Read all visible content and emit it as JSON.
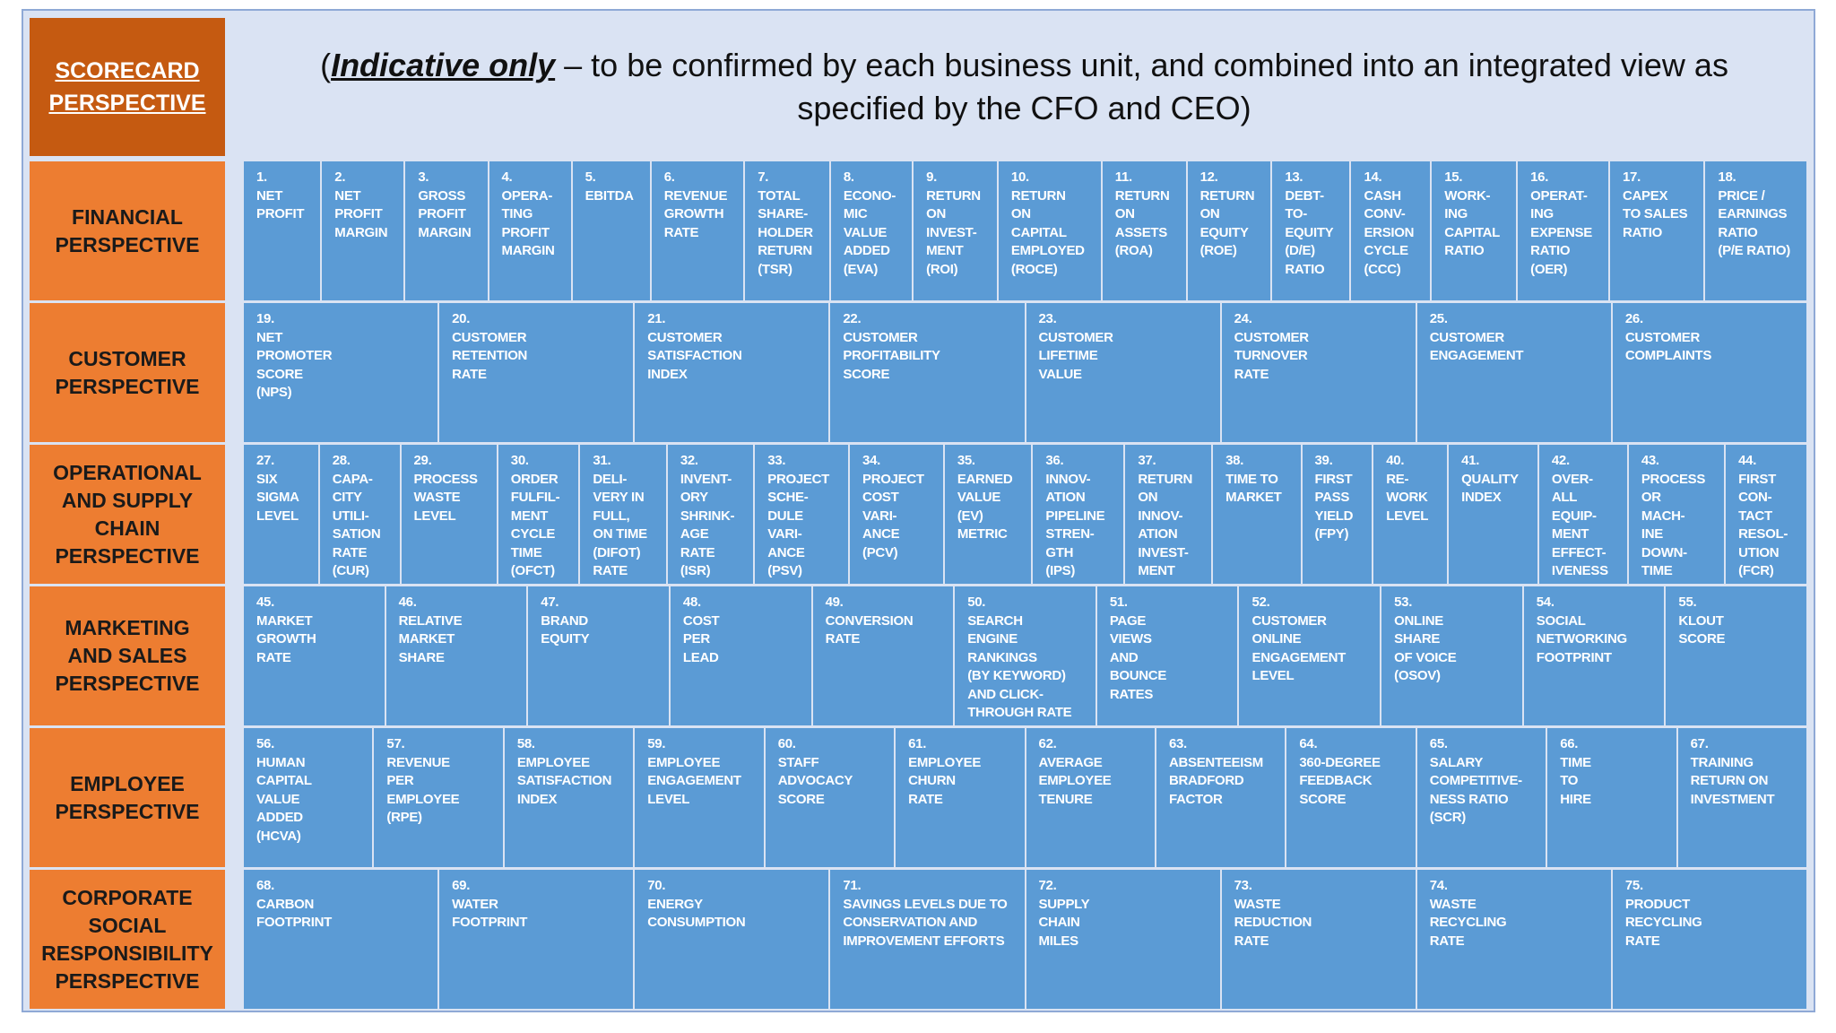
{
  "header": {
    "scorecard": "SCORECARD\nPERSPECTIVE",
    "prefix": "(",
    "emphasis": "Indicative only",
    "rest": " – to be confirmed by each business unit, and combined into an integrated view as specified by the CFO and CEO)"
  },
  "rows": [
    {
      "label": "FINANCIAL\nPERSPECTIVE",
      "cells": [
        "1.\nNET\nPROFIT",
        "2.\nNET\nPROFIT\nMARGIN",
        "3.\nGROSS\nPROFIT\nMARGIN",
        "4.\nOPERA-\nTING\nPROFIT\nMARGIN",
        "5.\nEBITDA",
        "6.\nREVENUE\nGROWTH\nRATE",
        "7.\nTOTAL\nSHARE-\nHOLDER\nRETURN\n(TSR)",
        "8.\nECONO-\nMIC\nVALUE\nADDED\n(EVA)",
        "9.\nRETURN\nON\nINVEST-\nMENT\n(ROI)",
        "10.\nRETURN\nON\nCAPITAL\nEMPLOYED\n(ROCE)",
        "11.\nRETURN\nON\nASSETS\n(ROA)",
        "12.\nRETURN\nON\nEQUITY\n(ROE)",
        "13.\nDEBT-\nTO-\nEQUITY\n(D/E)\nRATIO",
        "14.\nCASH\nCONV-\nERSION\nCYCLE\n(CCC)",
        "15.\nWORK-\nING\nCAPITAL\nRATIO",
        "16.\nOPERAT-\nING\nEXPENSE\nRATIO\n(OER)",
        "17.\nCAPEX\nTO SALES\nRATIO",
        "18.\nPRICE /\nEARNINGS\nRATIO\n(P/E RATIO)"
      ]
    },
    {
      "label": "CUSTOMER\nPERSPECTIVE",
      "cells": [
        "19.\nNET\nPROMOTER\nSCORE\n(NPS)",
        "20.\nCUSTOMER\nRETENTION\nRATE",
        "21.\nCUSTOMER\nSATISFACTION\nINDEX",
        "22.\nCUSTOMER\nPROFITABILITY\nSCORE",
        "23.\nCUSTOMER\nLIFETIME\nVALUE",
        "24.\nCUSTOMER\nTURNOVER\nRATE",
        "25.\nCUSTOMER\nENGAGEMENT",
        "26.\nCUSTOMER\nCOMPLAINTS"
      ]
    },
    {
      "label": "OPERATIONAL\nAND SUPPLY\nCHAIN\nPERSPECTIVE",
      "cells": [
        "27.\nSIX\nSIGMA\nLEVEL",
        "28.\nCAPA-\nCITY\nUTILI-\nSATION\nRATE\n(CUR)",
        "29.\nPROCESS\nWASTE\nLEVEL",
        "30.\nORDER\nFULFIL-\nMENT\nCYCLE\nTIME\n(OFCT)",
        "31.\nDELI-\nVERY IN\nFULL,\nON TIME\n(DIFOT)\nRATE",
        "32.\nINVENT-\nORY\nSHRINK-\nAGE\nRATE\n(ISR)",
        "33.\nPROJECT\nSCHE-\nDULE\nVARI-\nANCE\n(PSV)",
        "34.\nPROJECT\nCOST\nVARI-\nANCE\n(PCV)",
        "35.\nEARNED\nVALUE\n(EV)\nMETRIC",
        "36.\nINNOV-\nATION\nPIPELINE\nSTREN-\nGTH\n(IPS)",
        "37.\nRETURN\nON\nINNOV-\nATION\nINVEST-\nMENT",
        "38.\nTIME TO\nMARKET",
        "39.\nFIRST\nPASS\nYIELD\n(FPY)",
        "40.\nRE-\nWORK\nLEVEL",
        "41.\nQUALITY\nINDEX",
        "42.\nOVER-\nALL\nEQUIP-\nMENT\nEFFECT-\nIVENESS",
        "43.\nPROCESS\nOR\nMACH-\nINE\nDOWN-\nTIME",
        "44.\nFIRST\nCON-\nTACT\nRESOL-\nUTION\n(FCR)"
      ]
    },
    {
      "label": "MARKETING\nAND SALES\nPERSPECTIVE",
      "cells": [
        "45.\nMARKET\nGROWTH\nRATE",
        "46.\nRELATIVE\nMARKET\nSHARE",
        "47.\nBRAND\nEQUITY",
        "48.\nCOST\nPER\nLEAD",
        "49.\nCONVERSION\nRATE",
        "50.\nSEARCH\nENGINE\nRANKINGS\n(BY KEYWORD)\nAND CLICK-\nTHROUGH RATE",
        "51.\nPAGE\nVIEWS\nAND\nBOUNCE\nRATES",
        "52.\nCUSTOMER\nONLINE\nENGAGEMENT\nLEVEL",
        "53.\nONLINE\nSHARE\nOF VOICE\n(OSOV)",
        "54.\nSOCIAL\nNETWORKING\nFOOTPRINT",
        "55.\nKLOUT\nSCORE"
      ]
    },
    {
      "label": "EMPLOYEE\nPERSPECTIVE",
      "cells": [
        "56.\nHUMAN\nCAPITAL\nVALUE\nADDED\n(HCVA)",
        "57.\nREVENUE\nPER\nEMPLOYEE\n(RPE)",
        "58.\nEMPLOYEE\nSATISFACTION\nINDEX",
        "59.\nEMPLOYEE\nENGAGEMENT\nLEVEL",
        "60.\nSTAFF\nADVOCACY\nSCORE",
        "61.\nEMPLOYEE\nCHURN\nRATE",
        "62.\nAVERAGE\nEMPLOYEE\nTENURE",
        "63.\nABSENTEEISM\nBRADFORD\nFACTOR",
        "64.\n360-DEGREE\nFEEDBACK\nSCORE",
        "65.\nSALARY\nCOMPETITIVE-\nNESS RATIO\n(SCR)",
        "66.\nTIME\nTO\nHIRE",
        "67.\nTRAINING\nRETURN ON\nINVESTMENT"
      ]
    },
    {
      "label": "CORPORATE\nSOCIAL\nRESPONSIBILITY\nPERSPECTIVE",
      "cells": [
        "68.\nCARBON\nFOOTPRINT",
        "69.\nWATER\nFOOTPRINT",
        "70.\nENERGY\nCONSUMPTION",
        "71.\nSAVINGS LEVELS DUE TO\nCONSERVATION AND\nIMPROVEMENT EFFORTS",
        "72.\nSUPPLY\nCHAIN\nMILES",
        "73.\nWASTE\nREDUCTION\nRATE",
        "74.\nWASTE\nRECYCLING\nRATE",
        "75.\nPRODUCT\nRECYCLING\nRATE"
      ]
    }
  ]
}
